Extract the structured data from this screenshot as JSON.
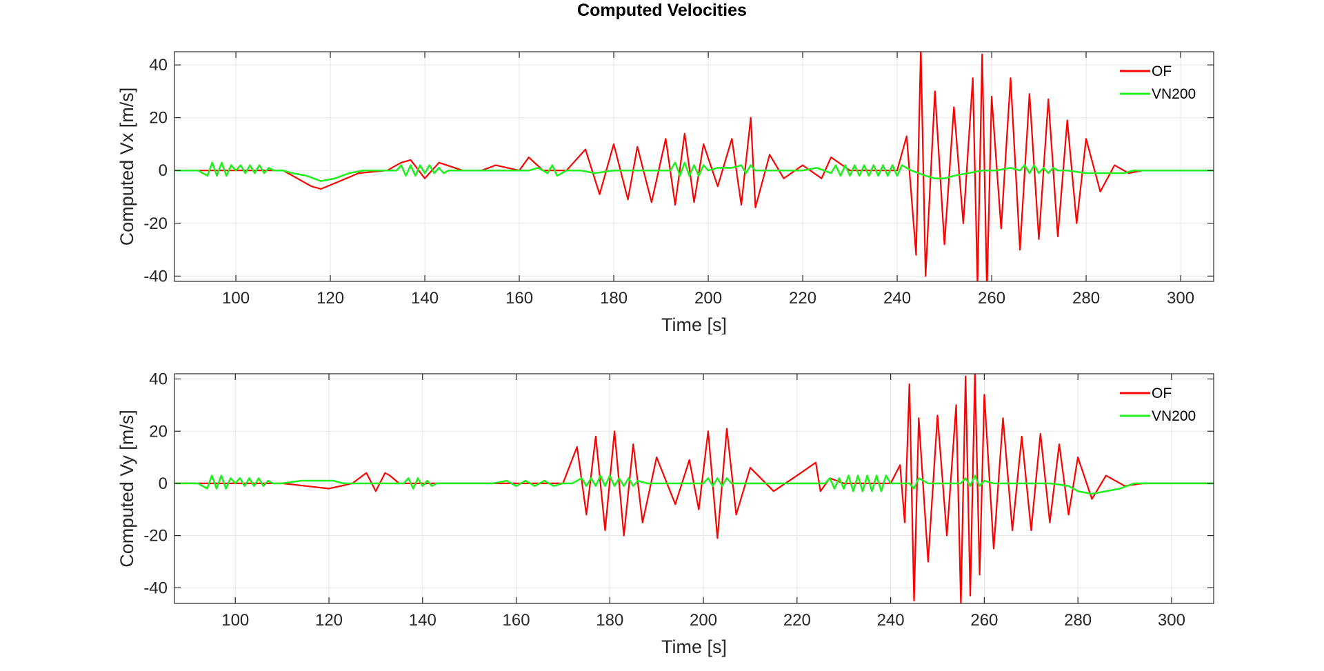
{
  "figure_title": "Computed Velocities",
  "colors": {
    "of": "#ff0000",
    "vn200": "#22ee22",
    "grid": "#e6e6e6",
    "axis": "#262626"
  },
  "chart_data": [
    {
      "type": "line",
      "title": "",
      "xlabel": "Time [s]",
      "ylabel": "Computed Vx [m/s]",
      "xlim": [
        87,
        307
      ],
      "ylim": [
        -42,
        45
      ],
      "xticks": [
        100,
        120,
        140,
        160,
        180,
        200,
        220,
        240,
        260,
        280,
        300
      ],
      "yticks": [
        -40,
        -20,
        0,
        20,
        40
      ],
      "grid": true,
      "legend": "top-right",
      "series": [
        {
          "name": "OF",
          "color": "#ff0000",
          "x": [
            87,
            100,
            110,
            113,
            116,
            118,
            122,
            126,
            132,
            135,
            137,
            140,
            143,
            148,
            152,
            155,
            160,
            162,
            165,
            170,
            174,
            177,
            180,
            183,
            185,
            188,
            191,
            193,
            195,
            197,
            199,
            202,
            205,
            207,
            209,
            210,
            213,
            216,
            220,
            224,
            226,
            230,
            236,
            240,
            242,
            244,
            245,
            246,
            248,
            250,
            252,
            254,
            256,
            257,
            258,
            259,
            260,
            262,
            264,
            266,
            268,
            270,
            272,
            274,
            276,
            278,
            280,
            283,
            286,
            289,
            292,
            296,
            307
          ],
          "y": [
            0,
            0,
            0,
            -3,
            -6,
            -7,
            -4,
            -1,
            0,
            3,
            4,
            -3,
            3,
            0,
            0,
            2,
            0,
            5,
            0,
            0,
            8,
            -9,
            10,
            -11,
            9,
            -12,
            12,
            -13,
            14,
            -12,
            10,
            -6,
            12,
            -13,
            20,
            -14,
            6,
            -3,
            2,
            -3,
            5,
            0,
            0,
            0,
            13,
            -32,
            46,
            -40,
            30,
            -28,
            24,
            -20,
            35,
            -43,
            44,
            -46,
            28,
            -22,
            35,
            -30,
            29,
            -26,
            27,
            -25,
            19,
            -20,
            12,
            -8,
            2,
            -1,
            0,
            0,
            0
          ]
        },
        {
          "name": "VN200",
          "color": "#22ee22",
          "x": [
            87,
            92,
            94,
            95,
            96,
            97,
            98,
            99,
            100,
            101,
            102,
            103,
            104,
            105,
            106,
            107,
            108,
            110,
            112,
            115,
            118,
            121,
            124,
            127,
            130,
            134,
            135,
            136,
            137,
            138,
            139,
            140,
            141,
            142,
            143,
            144,
            145,
            147,
            150,
            153,
            156,
            158,
            160,
            162,
            164,
            166,
            167,
            168,
            170,
            173,
            176,
            180,
            185,
            190,
            192,
            193,
            194,
            195,
            196,
            197,
            198,
            199,
            200,
            202,
            205,
            207,
            208,
            209,
            210,
            212,
            215,
            220,
            223,
            226,
            227,
            228,
            229,
            230,
            231,
            232,
            233,
            234,
            235,
            236,
            237,
            238,
            239,
            240,
            241,
            243,
            246,
            248,
            250,
            252,
            255,
            258,
            261,
            264,
            266,
            267,
            268,
            269,
            270,
            271,
            272,
            273,
            274,
            276,
            280,
            284,
            288,
            290,
            293,
            296,
            300,
            307
          ],
          "y": [
            0,
            0,
            -2,
            3,
            -2,
            3,
            -2,
            2,
            0,
            2,
            -1,
            2,
            -1,
            2,
            -1,
            1,
            0,
            0,
            -1,
            -2,
            -4,
            -3,
            -1,
            0,
            0,
            0,
            2,
            -2,
            2,
            -2,
            2,
            -1,
            2,
            -1,
            1,
            -1,
            0,
            0,
            0,
            0,
            0,
            0,
            0,
            0,
            1,
            -1,
            2,
            -2,
            0,
            0,
            -1,
            0,
            0,
            0,
            0,
            3,
            -2,
            3,
            -2,
            2,
            -2,
            2,
            0,
            1,
            1,
            2,
            -1,
            2,
            0,
            0,
            0,
            0,
            1,
            -1,
            2,
            -2,
            2,
            -2,
            2,
            -2,
            2,
            -2,
            2,
            -2,
            2,
            -2,
            2,
            -2,
            2,
            0,
            -2,
            -3,
            -3,
            -2,
            -1,
            0,
            0,
            1,
            0,
            2,
            -1,
            2,
            -1,
            1,
            -1,
            1,
            0,
            0,
            -1,
            -1,
            -1,
            0,
            0,
            0,
            0,
            0
          ]
        }
      ]
    },
    {
      "type": "line",
      "title": "",
      "xlabel": "Time [s]",
      "ylabel": "Computed Vy [m/s]",
      "xlim": [
        87,
        309
      ],
      "ylim": [
        -46,
        42
      ],
      "xticks": [
        100,
        120,
        140,
        160,
        180,
        200,
        220,
        240,
        260,
        280,
        300
      ],
      "yticks": [
        -40,
        -20,
        0,
        20,
        40
      ],
      "grid": true,
      "legend": "top-right",
      "series": [
        {
          "name": "OF",
          "color": "#ff0000",
          "x": [
            87,
            100,
            110,
            115,
            120,
            125,
            128,
            130,
            132,
            133,
            135,
            140,
            145,
            150,
            155,
            160,
            165,
            170,
            173,
            175,
            177,
            179,
            181,
            183,
            185,
            187,
            190,
            194,
            197,
            199,
            201,
            203,
            205,
            207,
            210,
            215,
            220,
            224,
            225,
            227,
            230,
            236,
            240,
            242,
            243,
            244,
            245,
            246,
            248,
            250,
            252,
            254,
            255,
            256,
            257,
            258,
            259,
            260,
            262,
            264,
            266,
            268,
            270,
            272,
            274,
            276,
            278,
            280,
            283,
            286,
            290,
            294,
            309
          ],
          "y": [
            0,
            0,
            0,
            -1,
            -2,
            0,
            4,
            -3,
            4,
            3,
            0,
            0,
            0,
            0,
            0,
            0,
            0,
            0,
            14,
            -12,
            18,
            -18,
            20,
            -20,
            15,
            -15,
            10,
            -8,
            9,
            -10,
            20,
            -21,
            21,
            -12,
            6,
            -3,
            3,
            8,
            -3,
            2,
            0,
            0,
            0,
            7,
            -15,
            38,
            -45,
            25,
            -30,
            26,
            -20,
            30,
            -46,
            41,
            -43,
            42,
            -35,
            34,
            -25,
            25,
            -18,
            18,
            -18,
            19,
            -15,
            15,
            -12,
            10,
            -6,
            3,
            -1,
            0,
            0
          ]
        },
        {
          "name": "VN200",
          "color": "#22ee22",
          "x": [
            87,
            92,
            94,
            95,
            96,
            97,
            98,
            99,
            100,
            101,
            102,
            103,
            104,
            105,
            106,
            107,
            108,
            110,
            114,
            118,
            121,
            123,
            126,
            130,
            134,
            136,
            137,
            138,
            139,
            140,
            141,
            142,
            143,
            145,
            150,
            155,
            158,
            160,
            162,
            164,
            166,
            168,
            170,
            172,
            174,
            175,
            176,
            177,
            178,
            179,
            180,
            181,
            182,
            183,
            184,
            185,
            186,
            188,
            192,
            196,
            200,
            201,
            202,
            203,
            204,
            205,
            206,
            208,
            212,
            216,
            220,
            226,
            227,
            228,
            229,
            230,
            231,
            232,
            233,
            234,
            235,
            236,
            237,
            238,
            239,
            240,
            242,
            244,
            245,
            246,
            248,
            252,
            255,
            256,
            257,
            258,
            259,
            260,
            262,
            266,
            270,
            274,
            278,
            280,
            283,
            286,
            289,
            292,
            296,
            309
          ],
          "y": [
            0,
            0,
            -2,
            3,
            -2,
            3,
            -2,
            2,
            0,
            2,
            -1,
            2,
            -1,
            2,
            -1,
            1,
            0,
            0,
            1,
            1,
            1,
            0,
            0,
            0,
            0,
            0,
            2,
            -2,
            2,
            -1,
            1,
            -1,
            0,
            0,
            0,
            0,
            1,
            -1,
            1,
            -1,
            1,
            -1,
            0,
            0,
            2,
            -1,
            2,
            -1,
            3,
            -1,
            3,
            -1,
            2,
            -1,
            2,
            -1,
            1,
            0,
            0,
            0,
            0,
            2,
            -1,
            2,
            -1,
            2,
            0,
            0,
            0,
            0,
            0,
            0,
            2,
            -2,
            2,
            -2,
            3,
            -3,
            3,
            -3,
            3,
            -3,
            3,
            -3,
            3,
            0,
            0,
            0,
            -2,
            2,
            0,
            0,
            0,
            2,
            -1,
            3,
            -1,
            1,
            0,
            0,
            0,
            0,
            -1,
            -3,
            -4,
            -3,
            -2,
            0,
            0,
            0
          ]
        }
      ]
    }
  ]
}
